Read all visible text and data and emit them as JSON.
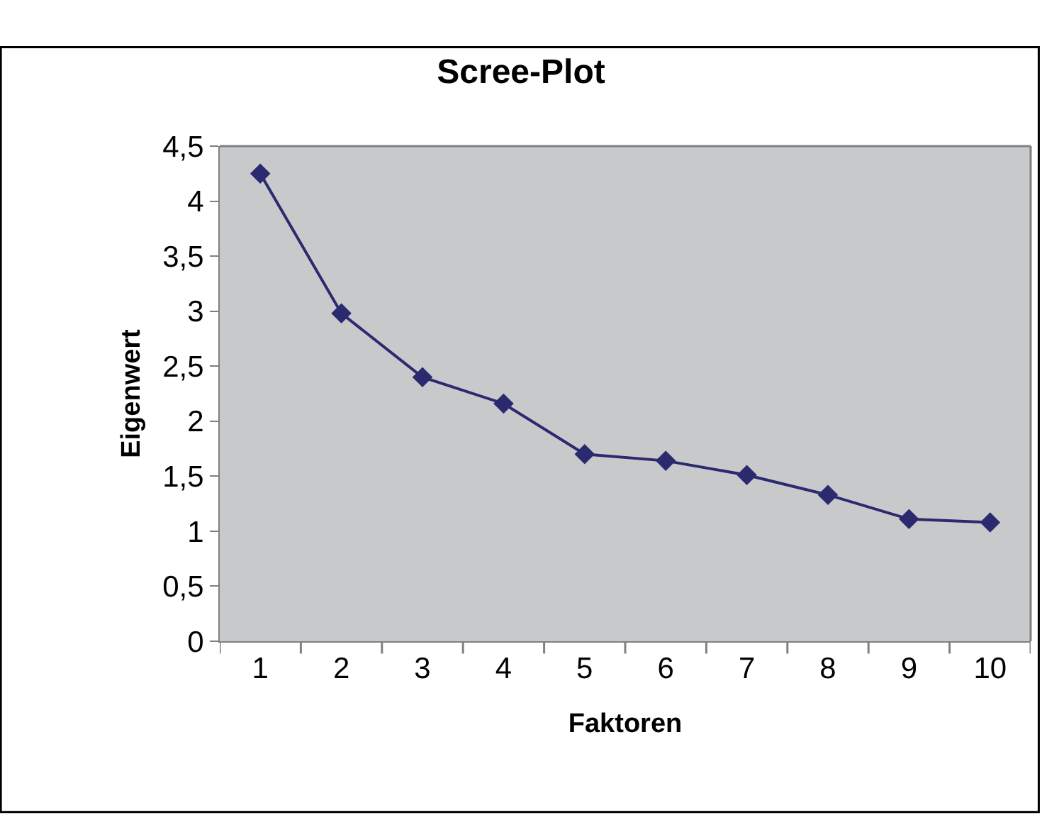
{
  "chart_data": {
    "type": "line",
    "title": "Scree-Plot",
    "xlabel": "Faktoren",
    "ylabel": "Eigenwert",
    "categories": [
      "1",
      "2",
      "3",
      "4",
      "5",
      "6",
      "7",
      "8",
      "9",
      "10"
    ],
    "series": [
      {
        "color": "#2b2a6e",
        "values": [
          4.25,
          2.98,
          2.4,
          2.16,
          1.7,
          1.64,
          1.51,
          1.33,
          1.11,
          1.08
        ]
      }
    ],
    "ylim": [
      0,
      4.5
    ],
    "yticks": [
      0,
      {
        "value": 0.5,
        "label": "0,5"
      },
      1,
      {
        "value": 1.5,
        "label": "1,5"
      },
      2,
      {
        "value": 2.5,
        "label": "2,5"
      },
      3,
      {
        "value": 3.5,
        "label": "3,5"
      },
      4,
      {
        "value": 4.5,
        "label": "4,5"
      }
    ],
    "marker": "diamond",
    "line_style": "solid",
    "grid": false,
    "legend": false
  }
}
